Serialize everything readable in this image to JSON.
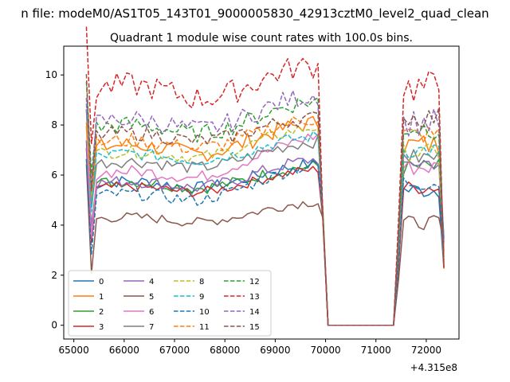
{
  "figure": {
    "suptitle": "n file: modeM0/AS1T05_143T01_9000005830_42913cztM0_level2_quad_clean"
  },
  "chart_data": {
    "type": "line",
    "title": "Quadrant 1 module wise count rates with 100.0s bins.",
    "xlabel": "",
    "ylabel": "",
    "x_offset_label": "+4.315e8",
    "x_offset": 431500000,
    "xlim": [
      64800,
      72650
    ],
    "ylim": [
      -0.55,
      11.15
    ],
    "xticks": [
      65000,
      66000,
      67000,
      68000,
      69000,
      70000,
      71000,
      72000
    ],
    "xtick_labels": [
      "65000",
      "66000",
      "67000",
      "68000",
      "69000",
      "70000",
      "71000",
      "72000"
    ],
    "yticks": [
      0,
      2,
      4,
      6,
      8,
      10
    ],
    "ytick_labels": [
      "0",
      "2",
      "4",
      "6",
      "8",
      "10"
    ],
    "grid": false,
    "legend": {
      "placement": "lower-left",
      "columns": 4
    },
    "segments": [
      {
        "x_start": 65250,
        "x_end": 70050,
        "step": 100
      },
      {
        "x_start": 71350,
        "x_end": 72350,
        "step": 100
      }
    ],
    "series": [
      {
        "name": "0",
        "color": "#1f77b4",
        "dash": false,
        "level": 5.6,
        "end": 6.4,
        "bump": 0.5,
        "seg2": 5.4
      },
      {
        "name": "1",
        "color": "#ff7f0e",
        "dash": false,
        "level": 7.0,
        "end": 8.0,
        "bump": 0.7,
        "seg2": 7.2
      },
      {
        "name": "2",
        "color": "#2ca02c",
        "dash": false,
        "level": 5.6,
        "end": 6.3,
        "bump": 0.5,
        "seg2": 6.3
      },
      {
        "name": "3",
        "color": "#d62728",
        "dash": false,
        "level": 5.4,
        "end": 6.2,
        "bump": 0.4,
        "seg2": 5.5
      },
      {
        "name": "4",
        "color": "#9467bd",
        "dash": false,
        "level": 5.6,
        "end": 6.6,
        "bump": 0.5,
        "seg2": 6.5
      },
      {
        "name": "5",
        "color": "#8c564b",
        "dash": false,
        "level": 4.2,
        "end": 4.9,
        "bump": 0.4,
        "seg2": 4.1
      },
      {
        "name": "6",
        "color": "#e377c2",
        "dash": false,
        "level": 6.0,
        "end": 7.6,
        "bump": 0.5,
        "seg2": 6.3
      },
      {
        "name": "7",
        "color": "#7f7f7f",
        "dash": false,
        "level": 6.4,
        "end": 7.3,
        "bump": 0.5,
        "seg2": 6.7
      },
      {
        "name": "8",
        "color": "#bcbd22",
        "dash": true,
        "level": 6.8,
        "end": 7.9,
        "bump": 0.5,
        "seg2": 6.9
      },
      {
        "name": "9",
        "color": "#17becf",
        "dash": true,
        "level": 6.7,
        "end": 7.5,
        "bump": 0.5,
        "seg2": 7.0
      },
      {
        "name": "10",
        "color": "#1f77b4",
        "dash": true,
        "level": 5.1,
        "end": 6.4,
        "bump": 0.5,
        "seg2": 5.7
      },
      {
        "name": "11",
        "color": "#ff7f0e",
        "dash": true,
        "level": 7.2,
        "end": 8.2,
        "bump": 0.6,
        "seg2": 7.6
      },
      {
        "name": "12",
        "color": "#2ca02c",
        "dash": true,
        "level": 7.8,
        "end": 8.9,
        "bump": 0.7,
        "seg2": 7.9
      },
      {
        "name": "13",
        "color": "#d62728",
        "dash": true,
        "level": 9.3,
        "end": 10.2,
        "bump": 1.0,
        "seg2": 9.5
      },
      {
        "name": "14",
        "color": "#9467bd",
        "dash": true,
        "level": 8.0,
        "end": 9.1,
        "bump": 0.8,
        "seg2": 8.1
      },
      {
        "name": "15",
        "color": "#8c564b",
        "dash": true,
        "level": 7.5,
        "end": 8.2,
        "bump": 0.6,
        "seg2": 8.3
      }
    ]
  }
}
